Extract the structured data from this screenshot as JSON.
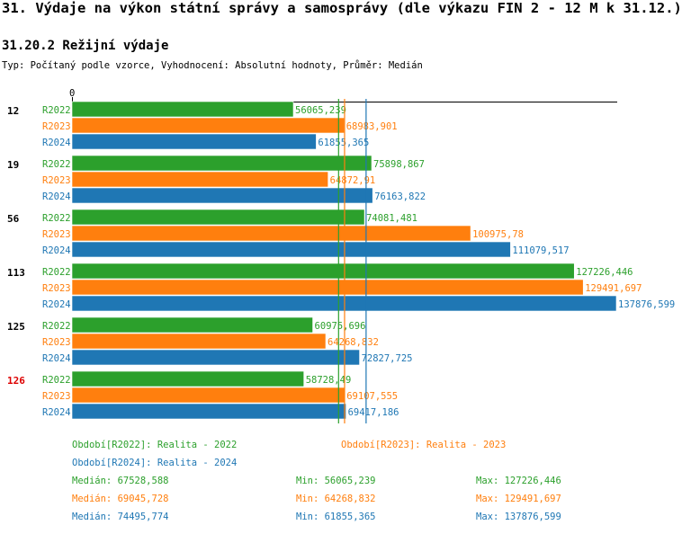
{
  "header": {
    "title": "31. Výdaje na výkon státní správy a samosprávy (dle výkazu FIN 2 - 12 M k 31.12.)",
    "subtitle": "31.20.2 Režijní výdaje",
    "typ": "Typ: Počítaný podle vzorce, Vyhodnocení: Absolutní hodnoty, Průměr: Medián"
  },
  "colors": {
    "R2022": "#2ca02c",
    "R2023": "#ff7f0e",
    "R2024": "#1f77b4",
    "highlight": "#dd0000"
  },
  "chart_data": {
    "type": "bar",
    "orientation": "horizontal",
    "axis_zero_label": "0",
    "xlim": [
      0,
      137876.599
    ],
    "series_names": [
      "R2022",
      "R2023",
      "R2024"
    ],
    "groups": [
      {
        "label": "12",
        "highlight": false,
        "values": [
          56065.239,
          68983.901,
          61855.365
        ],
        "labels": [
          "56065,239",
          "68983,901",
          "61855,365"
        ]
      },
      {
        "label": "19",
        "highlight": false,
        "values": [
          75898.867,
          64872.91,
          76163.822
        ],
        "labels": [
          "75898,867",
          "64872,91",
          "76163,822"
        ]
      },
      {
        "label": "56",
        "highlight": false,
        "values": [
          74081.481,
          100975.78,
          111079.517
        ],
        "labels": [
          "74081,481",
          "100975,78",
          "111079,517"
        ]
      },
      {
        "label": "113",
        "highlight": false,
        "values": [
          127226.446,
          129491.697,
          137876.599
        ],
        "labels": [
          "127226,446",
          "129491,697",
          "137876,599"
        ]
      },
      {
        "label": "125",
        "highlight": false,
        "values": [
          60975.696,
          64268.832,
          72827.725
        ],
        "labels": [
          "60975,696",
          "64268,832",
          "72827,725"
        ]
      },
      {
        "label": "126",
        "highlight": true,
        "values": [
          58728.49,
          69107.555,
          69417.186
        ],
        "labels": [
          "58728,49",
          "69107,555",
          "69417,186"
        ]
      }
    ],
    "medians": [
      67528.588,
      69045.728,
      74495.774
    ]
  },
  "legend": {
    "period_2022": "Období[R2022]: Realita - 2022",
    "period_2023": "Období[R2023]: Realita - 2023",
    "period_2024": "Období[R2024]: Realita - 2024",
    "stats": [
      {
        "median": "Medián: 67528,588",
        "min": "Min: 56065,239",
        "max": "Max: 127226,446"
      },
      {
        "median": "Medián: 69045,728",
        "min": "Min: 64268,832",
        "max": "Max: 129491,697"
      },
      {
        "median": "Medián: 74495,774",
        "min": "Min: 61855,365",
        "max": "Max: 137876,599"
      }
    ]
  }
}
